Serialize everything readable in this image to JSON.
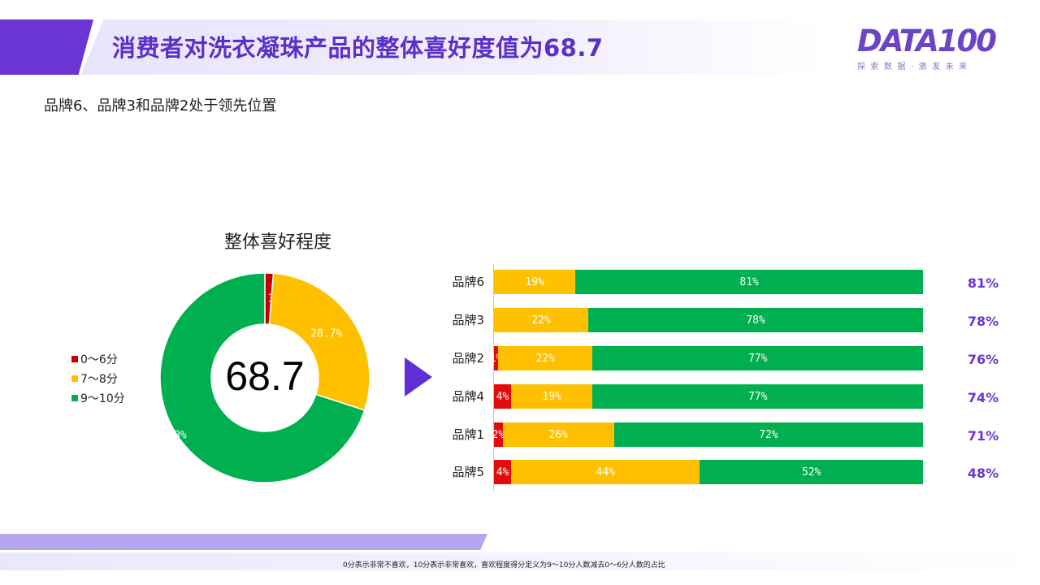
{
  "header": {
    "title": "消费者对洗衣凝珠产品的整体喜好度值为68.7",
    "logo_text": "DATA100",
    "logo_tagline": "探索数据·激发未来"
  },
  "subtitle": "品牌6、品牌3和品牌2处于领先位置",
  "footnote": "0分表示非常不喜欢，10分表示非常喜欢，喜欢程度得分定义为9～10分人数减去0～6分人数的占比",
  "colors": {
    "accent": "#6a35d4",
    "low": "#e30c0c",
    "mid": "#ffc000",
    "high": "#00b050"
  },
  "icons": {
    "arrow": "play-arrow-icon"
  },
  "chart_data": [
    {
      "type": "pie",
      "title": "整体喜好程度",
      "center_value": "68.7",
      "labels": [
        "0～6分",
        "7～8分",
        "9～10分"
      ],
      "values": [
        1.3,
        28.7,
        70.0
      ],
      "value_labels": [
        "1.3%",
        "28.7%",
        "70.0%"
      ],
      "colors": [
        "#c00000",
        "#ffc000",
        "#00b050"
      ],
      "legend": "left"
    },
    {
      "type": "bar",
      "orientation": "horizontal",
      "stacked": true,
      "categories": [
        "品牌6",
        "品牌3",
        "品牌2",
        "品牌4",
        "品牌1",
        "品牌5"
      ],
      "series": [
        {
          "name": "0～6分",
          "values": [
            0,
            0,
            1,
            4,
            2,
            4
          ],
          "labels": [
            "",
            "",
            "1%",
            "4%",
            "2%",
            "4%"
          ],
          "color": "#e30c0c"
        },
        {
          "name": "7～8分",
          "values": [
            19,
            22,
            22,
            19,
            26,
            44
          ],
          "labels": [
            "19%",
            "22%",
            "22%",
            "19%",
            "26%",
            "44%"
          ],
          "color": "#ffc000"
        },
        {
          "name": "9～10分",
          "values": [
            81,
            78,
            77,
            77,
            72,
            52
          ],
          "labels": [
            "81%",
            "78%",
            "77%",
            "77%",
            "72%",
            "52%"
          ],
          "color": "#00b050"
        }
      ],
      "scores": [
        "81%",
        "78%",
        "76%",
        "74%",
        "71%",
        "48%"
      ]
    }
  ]
}
